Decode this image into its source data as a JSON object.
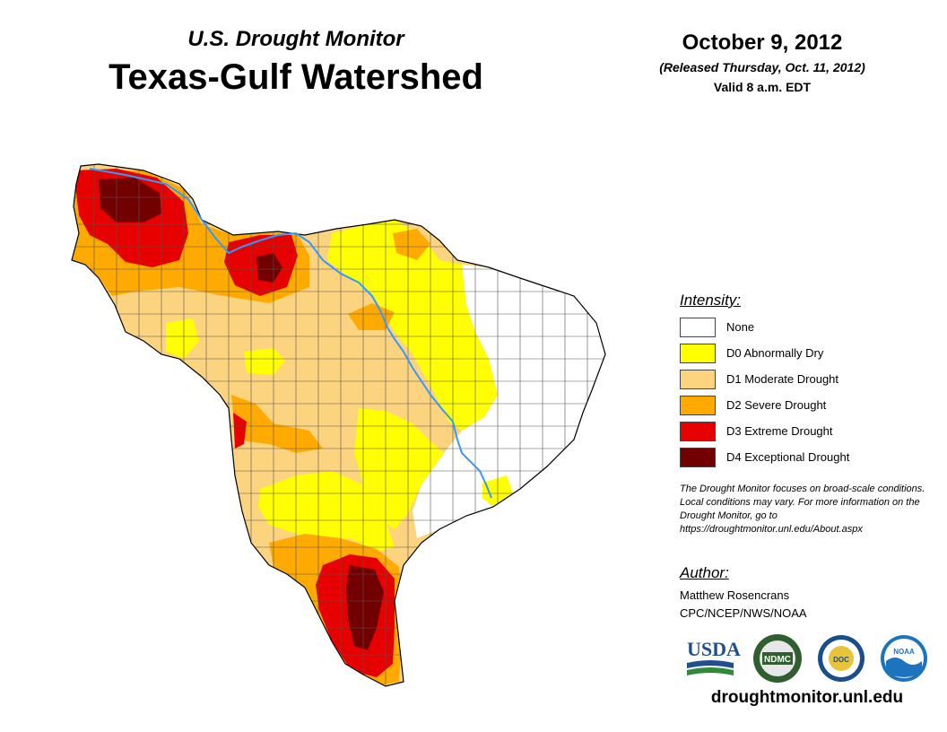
{
  "header": {
    "subtitle": "U.S. Drought Monitor",
    "title": "Texas-Gulf Watershed",
    "date": "October 9, 2012",
    "released": "(Released Thursday, Oct. 11, 2012)",
    "valid": "Valid 8 a.m. EDT"
  },
  "legend": {
    "title": "Intensity:",
    "items": [
      {
        "label": "None",
        "color": "#ffffff"
      },
      {
        "label": "D0 Abnormally Dry",
        "color": "#ffff00"
      },
      {
        "label": "D1 Moderate Drought",
        "color": "#fcd37f"
      },
      {
        "label": "D2 Severe Drought",
        "color": "#ffaa00"
      },
      {
        "label": "D3 Extreme Drought",
        "color": "#e60000"
      },
      {
        "label": "D4 Exceptional Drought",
        "color": "#730000"
      }
    ]
  },
  "disclaimer": "The Drought Monitor focuses on broad-scale conditions. Local conditions may vary. For more information on the Drought Monitor, go to https://droughtmonitor.unl.edu/About.aspx",
  "author": {
    "title": "Author:",
    "name": "Matthew Rosencrans",
    "org": "CPC/NCEP/NWS/NOAA"
  },
  "logos": {
    "usda": "USDA",
    "ndmc": "NDMC",
    "doc": "DOC",
    "noaa": "NOAA"
  },
  "footer": {
    "url": "droughtmonitor.unl.edu"
  },
  "colors": {
    "none": "#ffffff",
    "d0": "#ffff00",
    "d1": "#fcd37f",
    "d2": "#ffaa00",
    "d3": "#e60000",
    "d4": "#730000",
    "river": "#3399ff"
  }
}
